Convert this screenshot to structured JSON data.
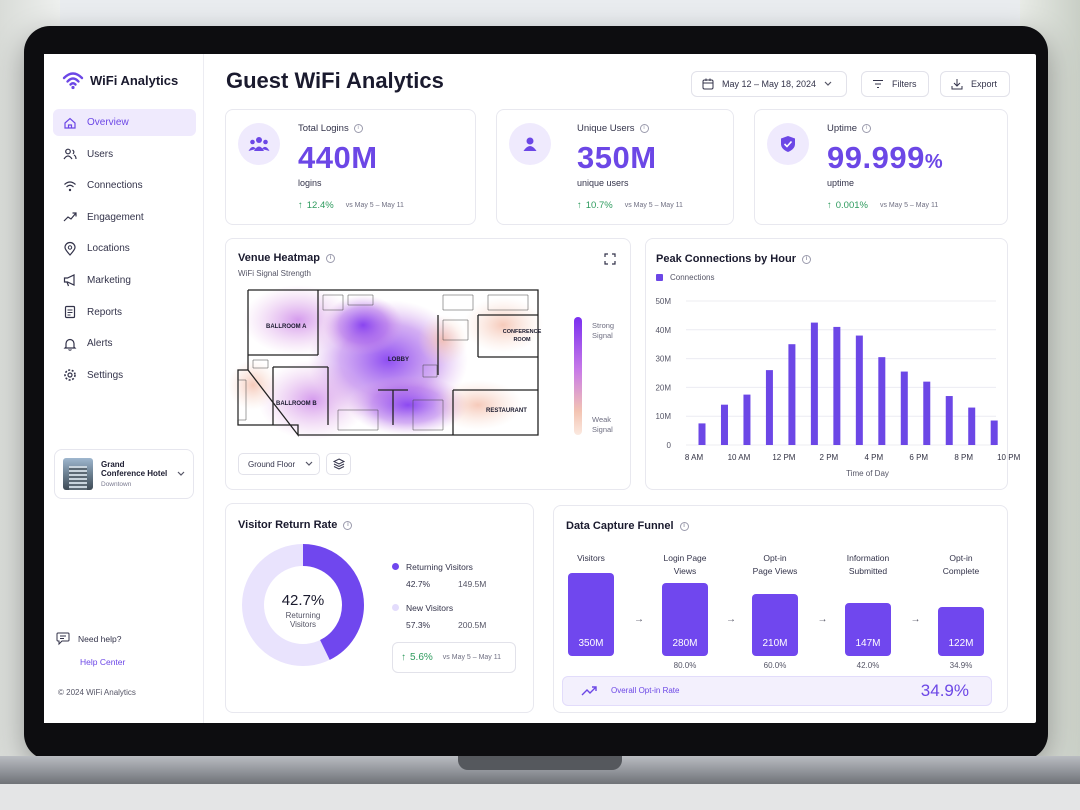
{
  "app": {
    "brand": "WiFi Analytics",
    "copyright": "© 2024 WiFi Analytics"
  },
  "sidebar": {
    "items": [
      {
        "label": "Overview",
        "icon": "home-icon",
        "active": true
      },
      {
        "label": "Users",
        "icon": "users-icon"
      },
      {
        "label": "Connections",
        "icon": "wifi-icon"
      },
      {
        "label": "Engagement",
        "icon": "trend-icon"
      },
      {
        "label": "Locations",
        "icon": "pin-icon"
      },
      {
        "label": "Marketing",
        "icon": "megaphone-icon"
      },
      {
        "label": "Reports",
        "icon": "report-icon"
      },
      {
        "label": "Alerts",
        "icon": "bell-icon"
      },
      {
        "label": "Settings",
        "icon": "gear-icon"
      }
    ],
    "venue": {
      "name": "Grand Conference Hotel",
      "area": "Downtown"
    },
    "help": {
      "label": "Need help?",
      "link": "Help Center"
    }
  },
  "header": {
    "title": "Guest WiFi Analytics",
    "date_range": "May 12 – May 18, 2024",
    "filters_label": "Filters",
    "export_label": "Export"
  },
  "kpis": [
    {
      "label": "Total Logins",
      "value": "440M",
      "sub": "logins",
      "trend": "12.4%",
      "vs": "vs May 5 – May 11"
    },
    {
      "label": "Unique Users",
      "value": "350M",
      "sub": "unique users",
      "trend": "10.7%",
      "vs": "vs May 5 – May 11"
    },
    {
      "label": "Uptime",
      "value": "99.999",
      "unit": "%",
      "sub": "uptime",
      "trend": "0.001%",
      "vs": "vs May 5 – May 11"
    }
  ],
  "heatmap": {
    "title": "Venue Heatmap",
    "subtitle": "WiFi Signal Strength",
    "rooms": {
      "ballroom_a": "BALLROOM A",
      "ballroom_b": "BALLROOM B",
      "lobby": "LOBBY",
      "conference": "CONFERENCE ROOM",
      "restaurant": "RESTAURANT"
    },
    "scale_strong": "Strong Signal",
    "scale_weak": "Weak Signal",
    "floor": "Ground Floor"
  },
  "peak": {
    "title": "Peak Connections by Hour",
    "legend": "Connections",
    "xlabel": "Time of Day"
  },
  "chart_data": {
    "type": "bar",
    "title": "Peak Connections by Hour",
    "xlabel": "Time of Day",
    "ylabel": "",
    "ylim": [
      0,
      50
    ],
    "yticks": [
      "0",
      "10M",
      "20M",
      "30M",
      "40M",
      "50M"
    ],
    "xticks": [
      "8 AM",
      "10 AM",
      "12 PM",
      "2 PM",
      "4 PM",
      "6 PM",
      "8 PM",
      "10 PM"
    ],
    "series": [
      {
        "name": "Connections",
        "unit": "M",
        "values": [
          7.5,
          14,
          17.5,
          26,
          35,
          42.5,
          41,
          38,
          30.5,
          25.5,
          22,
          17,
          13,
          8.5
        ]
      }
    ],
    "color": "#6c47e6"
  },
  "return_rate": {
    "title": "Visitor Return Rate",
    "center_value": "42.7%",
    "center_label_1": "Returning",
    "center_label_2": "Visitors",
    "returning": {
      "label": "Returning Visitors",
      "pct": "42.7%",
      "count": "149.5M",
      "fraction": 0.427
    },
    "new": {
      "label": "New Visitors",
      "pct": "57.3%",
      "count": "200.5M"
    },
    "trend": "5.6%",
    "vs": "vs May 5 – May 11"
  },
  "funnel": {
    "title": "Data Capture Funnel",
    "stages": [
      {
        "label1": "Visitors",
        "label2": "",
        "value": "350M",
        "pct": "",
        "level": 1.0
      },
      {
        "label1": "Login Page",
        "label2": "Views",
        "value": "280M",
        "pct": "80.0%",
        "level": 0.8
      },
      {
        "label1": "Opt-in",
        "label2": "Page Views",
        "value": "210M",
        "pct": "60.0%",
        "level": 0.6
      },
      {
        "label1": "Information",
        "label2": "Submitted",
        "value": "147M",
        "pct": "42.0%",
        "level": 0.42
      },
      {
        "label1": "Opt-in",
        "label2": "Complete",
        "value": "122M",
        "pct": "34.9%",
        "level": 0.349
      }
    ],
    "overall_label": "Overall Opt-in Rate",
    "overall_value": "34.9%"
  },
  "colors": {
    "accent": "#6c47e6",
    "accent_light": "#efeafd",
    "positive": "#2e9b5e"
  }
}
